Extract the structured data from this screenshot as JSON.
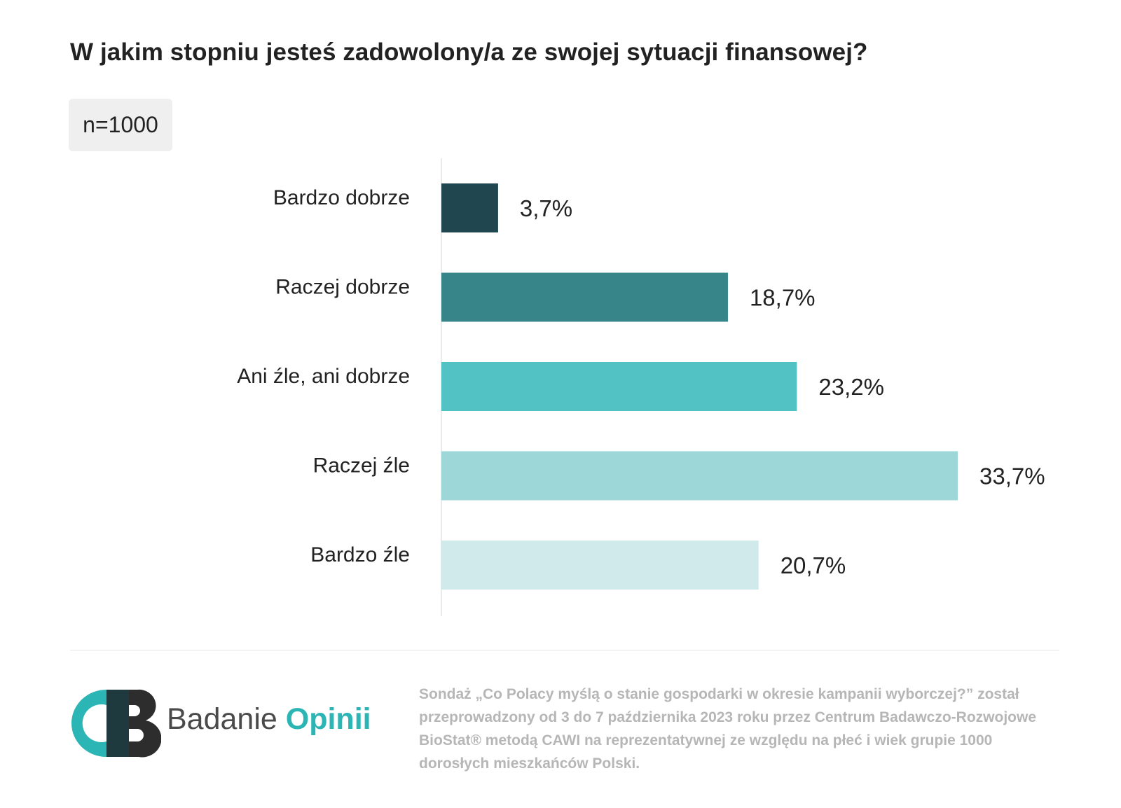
{
  "title": "W jakim stopniu jesteś zadowolony/a ze swojej sytuacji finansowej?",
  "sample": "n=1000",
  "chart_data": {
    "type": "bar",
    "orientation": "horizontal",
    "categories": [
      "Bardzo dobrze",
      "Raczej dobrze",
      "Ani źle, ani dobrze",
      "Raczej źle",
      "Bardzo źle"
    ],
    "values": [
      3.7,
      18.7,
      23.2,
      33.7,
      20.7
    ],
    "value_labels": [
      "3,7%",
      "18,7%",
      "23,2%",
      "33,7%",
      "20,7%"
    ],
    "colors": [
      "#20474f",
      "#388589",
      "#52c2c5",
      "#9dd7d7",
      "#d0e9ea"
    ],
    "xlim": [
      0,
      33.7
    ],
    "grid": false,
    "legend": "none"
  },
  "footer": {
    "logo_word1": "Badanie",
    "logo_word2": "Opinii",
    "note": "Sondaż „Co Polacy myślą o stanie gospodarki w okresie kampanii wyborczej?” został przeprowadzony od 3 do 7 października 2023 roku przez Centrum Badawczo-Rozwojowe BioStat® metodą CAWI na reprezentatywnej ze względu na płeć i wiek grupie 1000 dorosłych mieszkańców Polski."
  }
}
